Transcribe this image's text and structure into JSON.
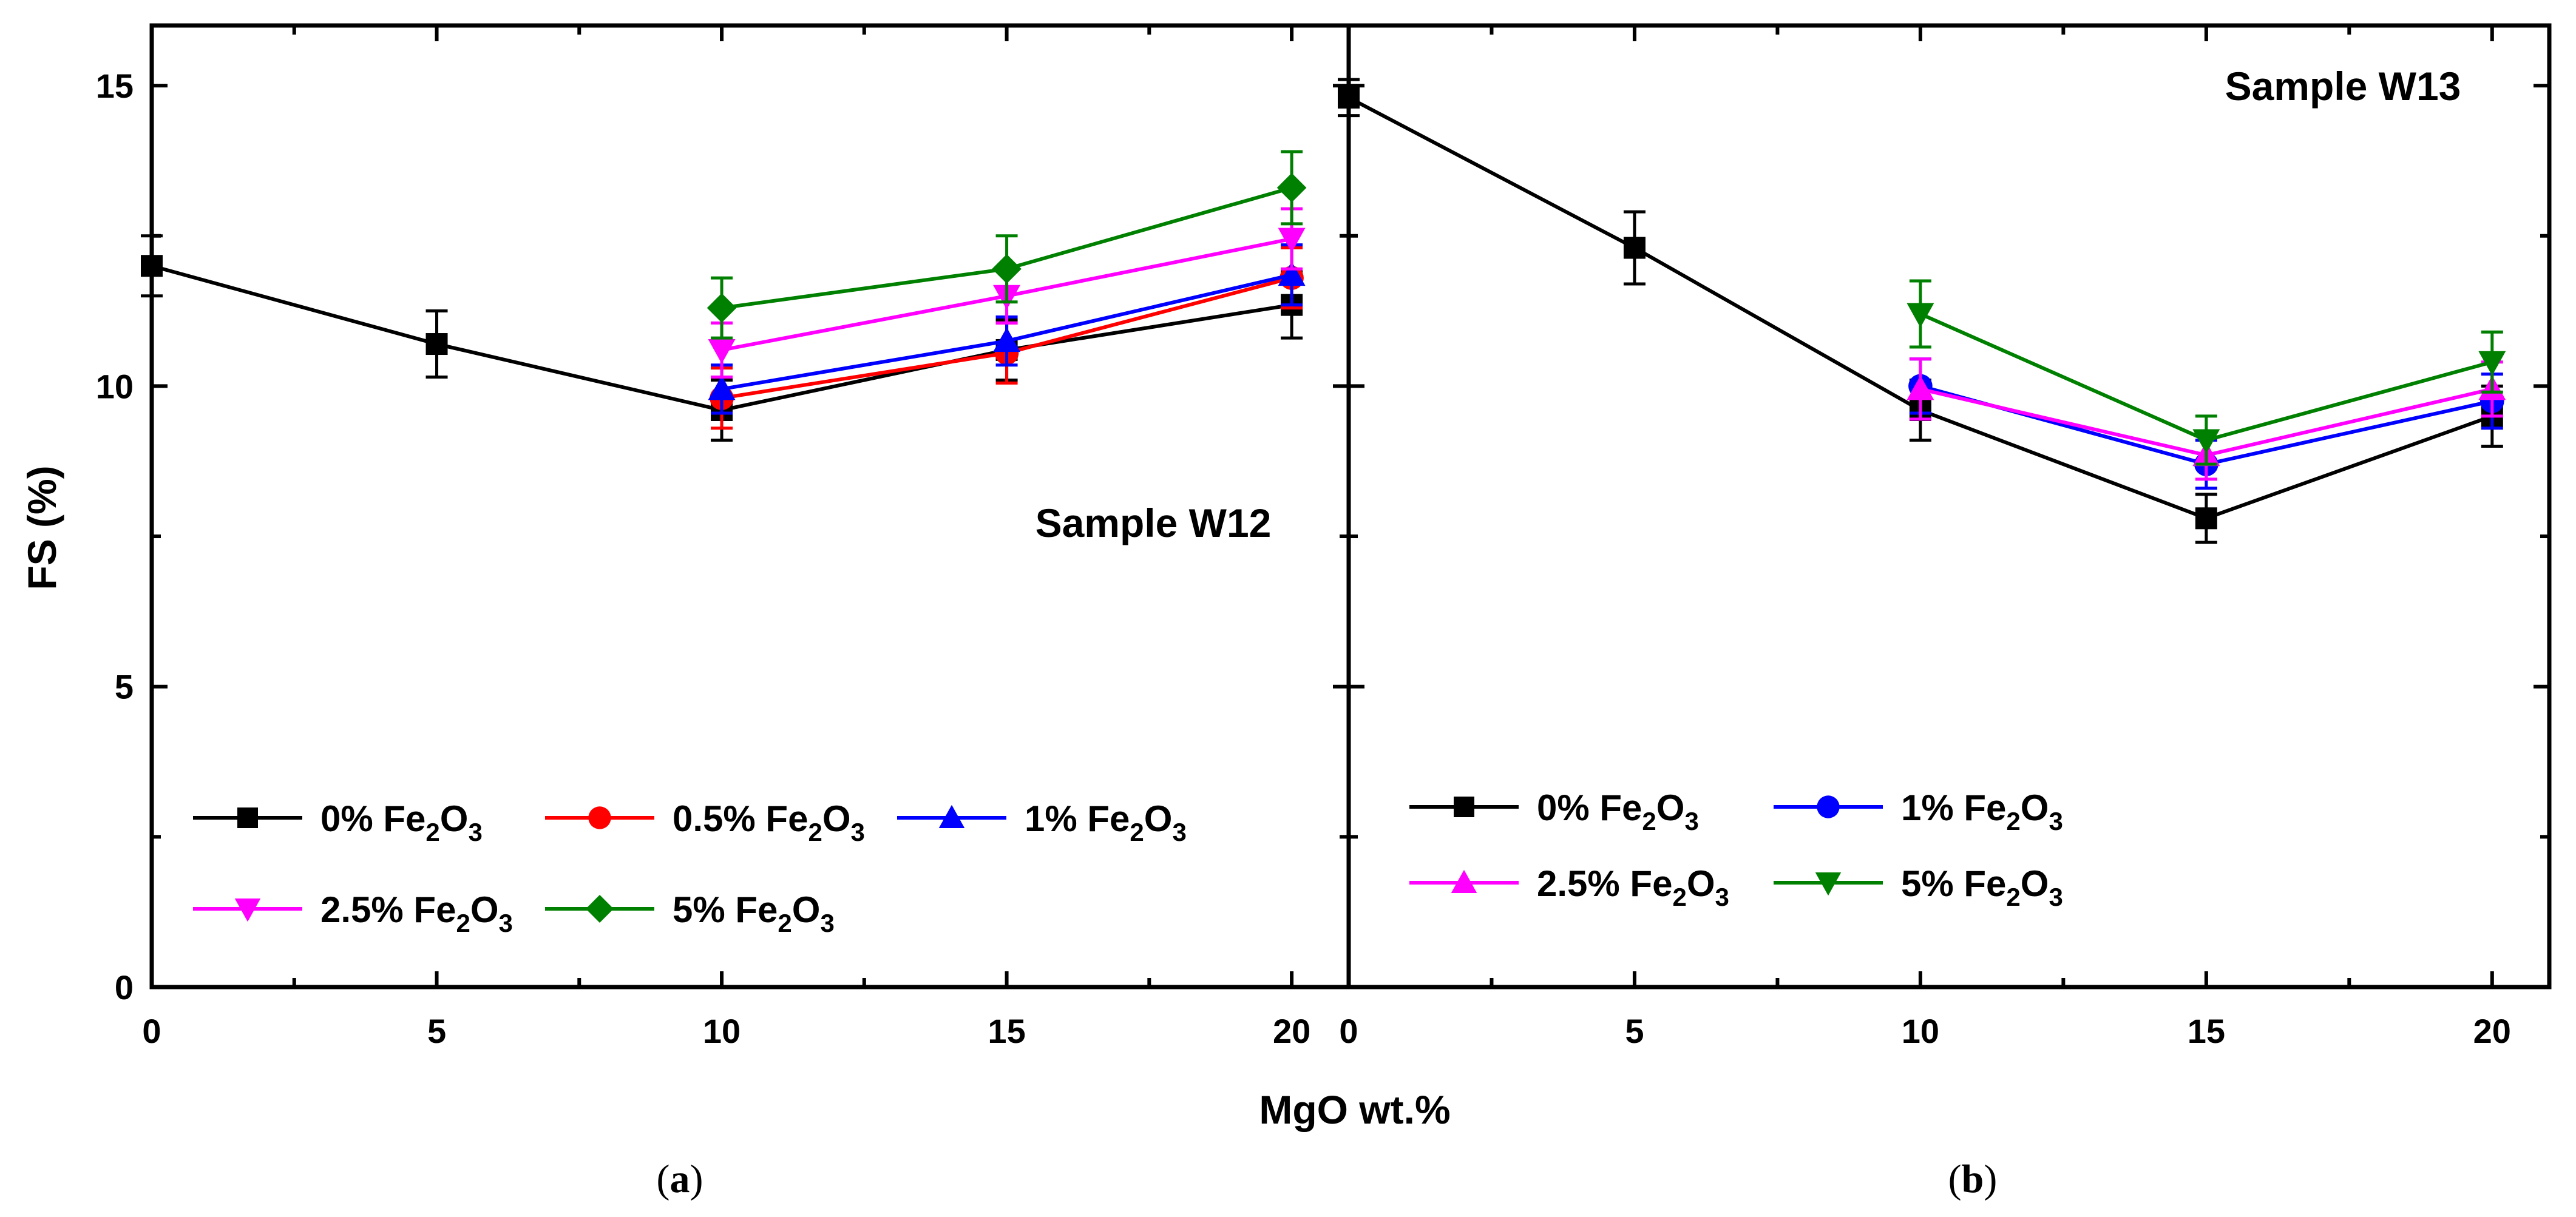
{
  "chart_data": {
    "type": "line",
    "xlabel": "MgO wt.%",
    "ylabel": "FS (%)",
    "xlim": [
      0,
      21
    ],
    "ylim": [
      0,
      16
    ],
    "x_ticks": [
      "0",
      "5",
      "10",
      "15",
      "20"
    ],
    "y_ticks": [
      "0",
      "5",
      "10",
      "15"
    ],
    "panels": [
      {
        "id": "a",
        "caption": "(a)",
        "caption_letter": "a",
        "annotation": "Sample W12",
        "series": [
          {
            "name": "0% Fe2O3",
            "label_pre": "0% Fe",
            "label_mid": "O",
            "sub1": "2",
            "sub2": "3",
            "color": "#000000",
            "marker": "square",
            "x": [
              0,
              5,
              10,
              15,
              20
            ],
            "y": [
              12.0,
              10.7,
              9.6,
              10.6,
              11.35
            ],
            "err": [
              0.5,
              0.55,
              0.5,
              0.5,
              0.55
            ]
          },
          {
            "name": "0.5% Fe2O3",
            "label_pre": "0.5% Fe",
            "label_mid": "O",
            "sub1": "2",
            "sub2": "3",
            "color": "#ff0000",
            "marker": "circle",
            "x": [
              10,
              15,
              20
            ],
            "y": [
              9.8,
              10.55,
              11.8
            ],
            "err": [
              0.5,
              0.5,
              0.5
            ]
          },
          {
            "name": "1% Fe2O3",
            "label_pre": "1% Fe",
            "label_mid": "O",
            "sub1": "2",
            "sub2": "3",
            "color": "#0000ff",
            "marker": "triangle-up",
            "x": [
              10,
              15,
              20
            ],
            "y": [
              9.95,
              10.75,
              11.85
            ],
            "err": [
              0.4,
              0.4,
              0.5
            ]
          },
          {
            "name": "2.5% Fe2O3",
            "label_pre": "2.5% Fe",
            "label_mid": "O",
            "sub1": "2",
            "sub2": "3",
            "color": "#ff00ff",
            "marker": "triangle-down",
            "x": [
              10,
              15,
              20
            ],
            "y": [
              10.6,
              11.5,
              12.45
            ],
            "err": [
              0.45,
              0.45,
              0.5
            ]
          },
          {
            "name": "5% Fe2O3",
            "label_pre": "5% Fe",
            "label_mid": "O",
            "sub1": "2",
            "sub2": "3",
            "color": "#008000",
            "marker": "diamond",
            "x": [
              10,
              15,
              20
            ],
            "y": [
              11.3,
              11.95,
              13.3
            ],
            "err": [
              0.5,
              0.55,
              0.6
            ]
          }
        ]
      },
      {
        "id": "b",
        "caption": "(b)",
        "caption_letter": "b",
        "annotation": "Sample W13",
        "series": [
          {
            "name": "0% Fe2O3",
            "label_pre": "0% Fe",
            "label_mid": "O",
            "sub1": "2",
            "sub2": "3",
            "color": "#000000",
            "marker": "square",
            "x": [
              0,
              5,
              10,
              15,
              20
            ],
            "y": [
              14.8,
              12.3,
              9.6,
              7.8,
              9.5
            ],
            "err": [
              0.3,
              0.6,
              0.5,
              0.4,
              0.5
            ]
          },
          {
            "name": "1% Fe2O3",
            "label_pre": "1% Fe",
            "label_mid": "O",
            "sub1": "2",
            "sub2": "3",
            "color": "#0000ff",
            "marker": "circle",
            "x": [
              10,
              15,
              20
            ],
            "y": [
              10.0,
              8.7,
              9.75
            ],
            "err": [
              0.45,
              0.4,
              0.45
            ]
          },
          {
            "name": "2.5% Fe2O3",
            "label_pre": "2.5% Fe",
            "label_mid": "O",
            "sub1": "2",
            "sub2": "3",
            "color": "#ff00ff",
            "marker": "triangle-up",
            "x": [
              10,
              15,
              20
            ],
            "y": [
              9.95,
              8.85,
              9.95
            ],
            "err": [
              0.5,
              0.4,
              0.45
            ]
          },
          {
            "name": "5% Fe2O3",
            "label_pre": "5% Fe",
            "label_mid": "O",
            "sub1": "2",
            "sub2": "3",
            "color": "#008000",
            "marker": "triangle-down",
            "x": [
              10,
              15,
              20
            ],
            "y": [
              11.2,
              9.1,
              10.4
            ],
            "err": [
              0.55,
              0.4,
              0.5
            ]
          }
        ]
      }
    ]
  }
}
